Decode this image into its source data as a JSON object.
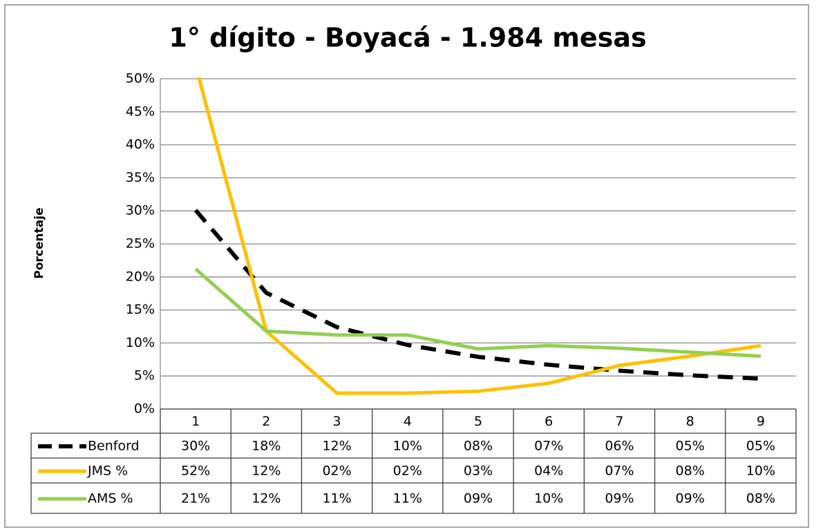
{
  "chart_data": {
    "type": "line",
    "title": "1° dígito - Boyacá - 1.984 mesas",
    "y_label": "Porcentaje",
    "categories": [
      "1",
      "2",
      "3",
      "4",
      "5",
      "6",
      "7",
      "8",
      "9"
    ],
    "series": [
      {
        "name": "Benford",
        "color": "#000000",
        "dashed": true,
        "values": [
          30.1,
          17.6,
          12.4,
          9.7,
          7.9,
          6.7,
          5.8,
          5.1,
          4.6
        ],
        "value_labels": [
          "30%",
          "18%",
          "12%",
          "10%",
          "08%",
          "07%",
          "06%",
          "05%",
          "05%"
        ]
      },
      {
        "name": "JMS %",
        "color": "#ffc000",
        "dashed": false,
        "values": [
          52,
          11.8,
          2.4,
          2.4,
          2.7,
          3.9,
          6.6,
          8.0,
          9.6
        ],
        "value_labels": [
          "52%",
          "12%",
          "02%",
          "02%",
          "03%",
          "04%",
          "07%",
          "08%",
          "10%"
        ]
      },
      {
        "name": "AMS %",
        "color": "#92d050",
        "dashed": false,
        "values": [
          21.2,
          11.8,
          11.2,
          11.2,
          9.1,
          9.6,
          9.2,
          8.6,
          8.0
        ],
        "value_labels": [
          "21%",
          "12%",
          "11%",
          "11%",
          "09%",
          "10%",
          "09%",
          "09%",
          "08%"
        ]
      }
    ],
    "ylim": [
      0,
      50
    ],
    "yticks": [
      {
        "value": 0,
        "label": "0%"
      },
      {
        "value": 5,
        "label": "5%"
      },
      {
        "value": 10,
        "label": "10%"
      },
      {
        "value": 15,
        "label": "15%"
      },
      {
        "value": 20,
        "label": "20%"
      },
      {
        "value": 25,
        "label": "25%"
      },
      {
        "value": 30,
        "label": "30%"
      },
      {
        "value": 35,
        "label": "35%"
      },
      {
        "value": 40,
        "label": "40%"
      },
      {
        "value": 45,
        "label": "45%"
      },
      {
        "value": 50,
        "label": "50%"
      }
    ],
    "grid": true
  }
}
